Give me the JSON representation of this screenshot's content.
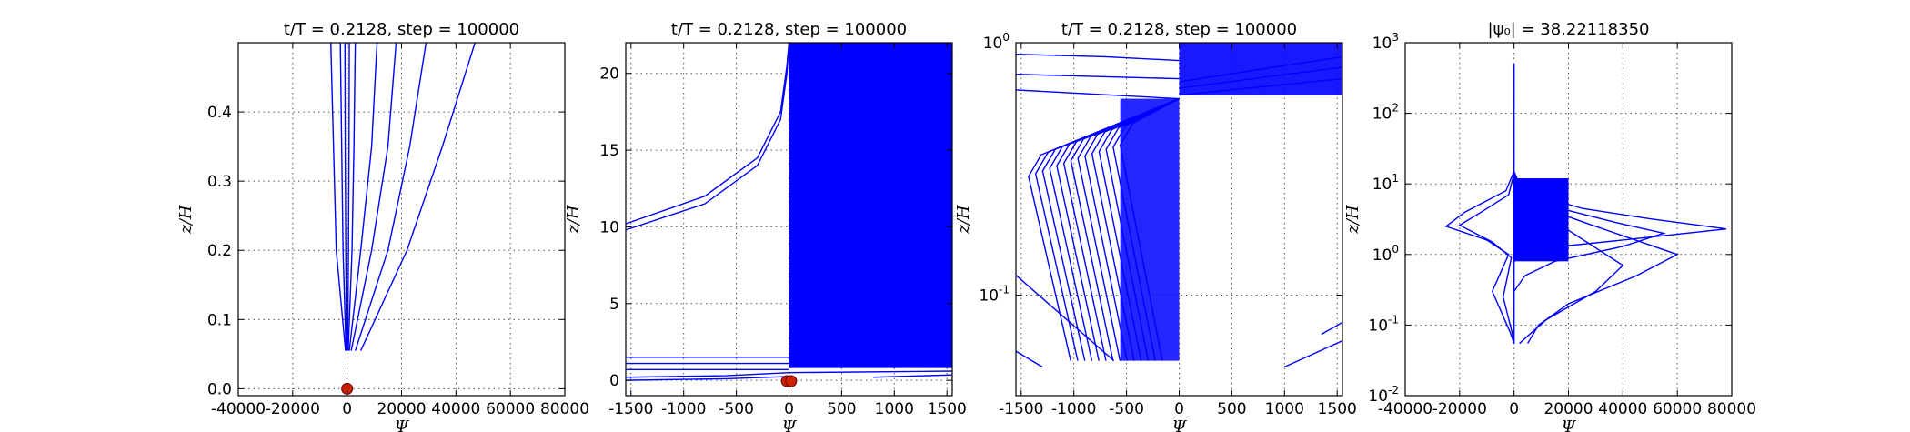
{
  "chart_data": [
    {
      "type": "line",
      "title": "t/T = 0.2128, step = 100000",
      "xlabel": "Ψ",
      "ylabel": "z/H",
      "xlim": [
        -40000,
        80000
      ],
      "ylim": [
        -0.01,
        0.5
      ],
      "yscale": "linear",
      "xticks": [
        -40000,
        -20000,
        0,
        20000,
        40000,
        60000,
        80000
      ],
      "yticks": [
        0.0,
        0.1,
        0.2,
        0.3,
        0.4
      ],
      "grid": true,
      "series": [
        {
          "x": [
            -600,
            -4000,
            -5000,
            -6000
          ],
          "y": [
            0.055,
            0.2,
            0.35,
            0.5
          ]
        },
        {
          "x": [
            -400,
            -1500,
            -2000,
            -2500
          ],
          "y": [
            0.055,
            0.2,
            0.35,
            0.5
          ]
        },
        {
          "x": [
            -200,
            -500,
            -700,
            -800
          ],
          "y": [
            0.055,
            0.2,
            0.35,
            0.5
          ]
        },
        {
          "x": [
            200,
            500,
            700,
            800
          ],
          "y": [
            0.055,
            0.2,
            0.35,
            0.5
          ]
        },
        {
          "x": [
            400,
            1800,
            2500,
            3000
          ],
          "y": [
            0.055,
            0.2,
            0.35,
            0.5
          ]
        },
        {
          "x": [
            800,
            5000,
            9000,
            11000
          ],
          "y": [
            0.055,
            0.2,
            0.35,
            0.5
          ]
        },
        {
          "x": [
            1500,
            9000,
            15000,
            18000
          ],
          "y": [
            0.055,
            0.2,
            0.35,
            0.5
          ]
        },
        {
          "x": [
            3000,
            15000,
            23000,
            29000
          ],
          "y": [
            0.055,
            0.2,
            0.35,
            0.5
          ]
        },
        {
          "x": [
            5000,
            22000,
            35000,
            47000
          ],
          "y": [
            0.055,
            0.2,
            0.35,
            0.5
          ]
        }
      ],
      "markers": [
        {
          "x": 0,
          "y": 0
        }
      ]
    },
    {
      "type": "line",
      "title": "t/T = 0.2128, step = 100000",
      "xlabel": "Ψ",
      "ylabel": "z/H",
      "xlim": [
        -1550,
        1550
      ],
      "ylim": [
        -1,
        22
      ],
      "yscale": "linear",
      "xticks": [
        -1500,
        -1000,
        -500,
        0,
        500,
        1000,
        1500
      ],
      "yticks": [
        0,
        5,
        10,
        15,
        20
      ],
      "grid": true,
      "series": [
        {
          "x": [
            -1550,
            -800,
            -300,
            -80,
            -20,
            0
          ],
          "y": [
            9.8,
            11.5,
            14,
            17,
            20,
            22
          ]
        },
        {
          "x": [
            -1550,
            -800,
            -300,
            -80,
            -20,
            0
          ],
          "y": [
            10.2,
            12,
            14.5,
            17.5,
            20.5,
            22
          ]
        },
        {
          "x": [
            0,
            30,
            150,
            500,
            1000,
            1550
          ],
          "y": [
            22,
            19,
            17,
            15.5,
            14.3,
            13.3
          ]
        },
        {
          "x": [
            0,
            30,
            150,
            500,
            1000,
            1550
          ],
          "y": [
            21,
            18,
            16.2,
            14.8,
            13.5,
            12.5
          ]
        },
        {
          "x": [
            0,
            30,
            150,
            500,
            1000,
            1550
          ],
          "y": [
            20,
            17,
            15.2,
            13.8,
            12.6,
            11.7
          ]
        },
        {
          "x": [
            0,
            30,
            150,
            500,
            1000,
            1550
          ],
          "y": [
            19,
            16,
            14,
            12.5,
            11.3,
            10.5
          ]
        },
        {
          "x": [
            0,
            30,
            150,
            500,
            1000,
            1550
          ],
          "y": [
            17,
            14.5,
            12.6,
            11.2,
            10.2,
            9.4
          ]
        },
        {
          "x": [
            -1550,
            0
          ],
          "y": [
            1.5,
            1.5
          ]
        },
        {
          "x": [
            -1550,
            0
          ],
          "y": [
            1.1,
            1.1
          ]
        },
        {
          "x": [
            -1550,
            0
          ],
          "y": [
            0.7,
            0.7
          ]
        },
        {
          "x": [
            -1550,
            -600,
            0
          ],
          "y": [
            0.2,
            0.3,
            0.5
          ]
        },
        {
          "x": [
            -1550,
            -600,
            0
          ],
          "y": [
            0.0,
            0.1,
            0.25
          ]
        },
        {
          "x": [
            0,
            1550
          ],
          "y": [
            0.5,
            0.6
          ]
        },
        {
          "x": [
            800,
            1550
          ],
          "y": [
            0.2,
            0.35
          ]
        }
      ],
      "fill_region": {
        "x": [
          0,
          1550
        ],
        "y_bottom": 0.8,
        "y_top": 22
      },
      "markers": [
        {
          "x": -20,
          "y": -0.05
        },
        {
          "x": 20,
          "y": -0.05
        }
      ]
    },
    {
      "type": "line",
      "title": "t/T = 0.2128, step = 100000",
      "xlabel": "Ψ",
      "ylabel": "z/H",
      "xlim": [
        -1550,
        1550
      ],
      "ylim": [
        0.04,
        1.0
      ],
      "yscale": "log",
      "xticks": [
        -1500,
        -1000,
        -500,
        0,
        500,
        1000,
        1500
      ],
      "yticks": [
        0.1,
        1.0
      ],
      "ytick_labels": [
        {
          "base": "10",
          "exp": "-1"
        },
        {
          "base": "10",
          "exp": "0"
        }
      ],
      "grid": true,
      "series": [
        {
          "x": [
            -1550,
            0
          ],
          "y": [
            0.65,
            0.6
          ]
        },
        {
          "x": [
            -1550,
            0
          ],
          "y": [
            0.75,
            0.72
          ]
        },
        {
          "x": [
            -1550,
            -700,
            0
          ],
          "y": [
            0.9,
            0.88,
            0.85
          ]
        },
        {
          "x": [
            0,
            1550
          ],
          "y": [
            0.62,
            0.72
          ]
        },
        {
          "x": [
            0,
            1550
          ],
          "y": [
            0.66,
            0.8
          ]
        },
        {
          "x": [
            0,
            1550
          ],
          "y": [
            0.7,
            0.88
          ]
        },
        {
          "x": [
            -1550,
            -620
          ],
          "y": [
            0.12,
            0.055
          ]
        },
        {
          "x": [
            -1550,
            -1300
          ],
          "y": [
            0.06,
            0.052
          ]
        },
        {
          "x": [
            1000,
            1550
          ],
          "y": [
            0.052,
            0.066
          ]
        },
        {
          "x": [
            1350,
            1550
          ],
          "y": [
            0.07,
            0.078
          ]
        }
      ],
      "fans": {
        "count": 14,
        "apex_y": 0.055,
        "knee_y_range": [
          0.36,
          0.48
        ],
        "knee_x_range": [
          -1430,
          -560
        ],
        "top_y": 0.6
      }
    },
    {
      "type": "line",
      "title": "|ψ₀| = 38.22118350",
      "xlabel": "Ψ",
      "ylabel": "z/H",
      "xlim": [
        -40000,
        80000
      ],
      "ylim": [
        0.01,
        1000
      ],
      "yscale": "log",
      "xticks": [
        -40000,
        -20000,
        0,
        20000,
        40000,
        60000,
        80000
      ],
      "yticks": [
        0.01,
        0.1,
        1,
        10,
        100,
        1000
      ],
      "ytick_labels": [
        {
          "base": "10",
          "exp": "-2"
        },
        {
          "base": "10",
          "exp": "-1"
        },
        {
          "base": "10",
          "exp": "0"
        },
        {
          "base": "10",
          "exp": "1"
        },
        {
          "base": "10",
          "exp": "2"
        },
        {
          "base": "10",
          "exp": "3"
        }
      ],
      "grid": true,
      "series": [
        {
          "x": [
            0,
            0
          ],
          "y": [
            0.055,
            500
          ]
        },
        {
          "x": [
            0,
            -3000,
            -18000,
            -25000,
            -10000,
            -2000,
            -8000,
            -1500,
            0
          ],
          "y": [
            15,
            8,
            4,
            2.5,
            1.6,
            1.0,
            0.3,
            0.08,
            0.055
          ]
        },
        {
          "x": [
            0,
            -2000,
            -12000,
            -20000,
            -8000,
            -1000,
            -4000,
            -800,
            0
          ],
          "y": [
            14,
            7,
            4,
            2.6,
            1.5,
            0.9,
            0.25,
            0.08,
            0.055
          ]
        },
        {
          "x": [
            0,
            3000,
            25000,
            50000,
            78000,
            40000,
            8000,
            2500,
            0
          ],
          "y": [
            15,
            8,
            4.5,
            3.2,
            2.3,
            1.6,
            1.2,
            0.9,
            0.8
          ]
        },
        {
          "x": [
            0,
            2500,
            20000,
            38000,
            55000,
            40000,
            15000,
            4000,
            0
          ],
          "y": [
            14,
            7.5,
            4.2,
            2.8,
            2.0,
            1.3,
            0.8,
            0.5,
            0.3
          ]
        },
        {
          "x": [
            0,
            2000,
            15000,
            30000,
            60000,
            45000,
            20000,
            9000,
            5000
          ],
          "y": [
            13,
            7,
            4,
            2.5,
            1.0,
            0.5,
            0.2,
            0.1,
            0.055
          ]
        },
        {
          "x": [
            0,
            1500,
            10000,
            20000,
            40000,
            30000,
            12000,
            5000,
            2000
          ],
          "y": [
            12,
            6.5,
            3.8,
            2.2,
            0.7,
            0.3,
            0.12,
            0.07,
            0.055
          ]
        }
      ],
      "fill_region": {
        "x": [
          0,
          20000
        ],
        "y_bottom": 0.8,
        "y_top": 12
      }
    }
  ]
}
